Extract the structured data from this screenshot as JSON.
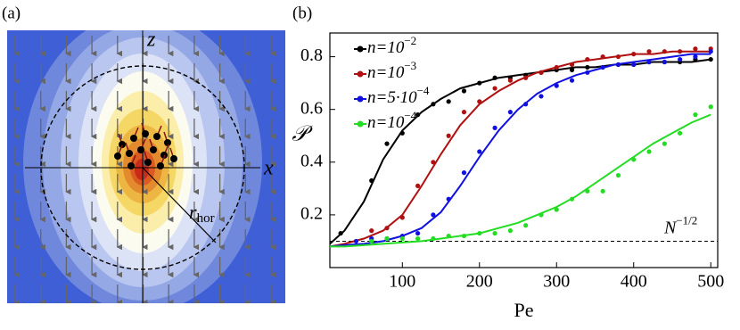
{
  "panel_a": {
    "label": "(a)",
    "z_label": "z",
    "x_label": "x",
    "r_label": "r",
    "r_subscript": "hor"
  },
  "chart_data": {
    "type": "line",
    "panel_label": "(b)",
    "x_label": "Pe",
    "y_label": "𝒫",
    "xlim": [
      6,
      509
    ],
    "ylim": [
      0,
      0.89
    ],
    "xticks": [
      100,
      200,
      300,
      400,
      500
    ],
    "yticks": [
      0.2,
      0.4,
      0.6,
      0.8
    ],
    "legend": "upper left",
    "reference_line": {
      "value": 0.1,
      "label": "N",
      "label_superscript": "−1/2"
    },
    "series": [
      {
        "name": "n=10",
        "name_superscript": "−2",
        "color": "#000000",
        "x": [
          20,
          60,
          80,
          100,
          120,
          140,
          160,
          180,
          200,
          220,
          240,
          260,
          280,
          300,
          320,
          340,
          360,
          380,
          400,
          420,
          440,
          460,
          480,
          500
        ],
        "values": [
          0.13,
          0.33,
          0.47,
          0.51,
          0.58,
          0.62,
          0.63,
          0.67,
          0.7,
          0.72,
          0.72,
          0.73,
          0.74,
          0.75,
          0.75,
          0.76,
          0.76,
          0.77,
          0.77,
          0.78,
          0.78,
          0.78,
          0.79,
          0.79
        ],
        "fit_x": [
          6,
          25,
          50,
          75,
          100,
          125,
          150,
          175,
          200,
          225,
          250,
          275,
          300,
          325,
          350,
          375,
          400,
          425,
          450,
          475,
          500
        ],
        "fit_values": [
          0.09,
          0.14,
          0.25,
          0.41,
          0.52,
          0.59,
          0.64,
          0.68,
          0.7,
          0.72,
          0.73,
          0.74,
          0.75,
          0.76,
          0.76,
          0.77,
          0.77,
          0.78,
          0.78,
          0.78,
          0.79
        ]
      },
      {
        "name": "n=10",
        "name_superscript": "−3",
        "color": "#b01010",
        "x": [
          60,
          80,
          100,
          120,
          140,
          160,
          180,
          200,
          220,
          240,
          260,
          280,
          300,
          320,
          340,
          360,
          380,
          400,
          420,
          440,
          460,
          480,
          500
        ],
        "values": [
          0.14,
          0.15,
          0.19,
          0.31,
          0.4,
          0.5,
          0.59,
          0.63,
          0.68,
          0.71,
          0.72,
          0.74,
          0.76,
          0.77,
          0.79,
          0.8,
          0.8,
          0.81,
          0.82,
          0.82,
          0.82,
          0.83,
          0.83
        ],
        "fit_x": [
          6,
          25,
          50,
          75,
          100,
          125,
          150,
          175,
          200,
          225,
          250,
          275,
          300,
          325,
          350,
          375,
          400,
          425,
          450,
          475,
          500
        ],
        "fit_values": [
          0.08,
          0.09,
          0.11,
          0.14,
          0.2,
          0.31,
          0.43,
          0.54,
          0.62,
          0.67,
          0.71,
          0.74,
          0.76,
          0.78,
          0.79,
          0.8,
          0.81,
          0.81,
          0.82,
          0.82,
          0.82
        ]
      },
      {
        "name": "n=5·10",
        "name_superscript": "−4",
        "color": "#1010e0",
        "x": [
          40,
          60,
          80,
          100,
          120,
          140,
          160,
          180,
          200,
          220,
          240,
          260,
          280,
          300,
          320,
          340,
          360,
          380,
          400,
          420,
          440,
          460,
          480,
          500
        ],
        "values": [
          0.1,
          0.11,
          0.11,
          0.12,
          0.13,
          0.2,
          0.26,
          0.36,
          0.44,
          0.53,
          0.59,
          0.62,
          0.65,
          0.69,
          0.71,
          0.74,
          0.76,
          0.77,
          0.77,
          0.78,
          0.78,
          0.79,
          0.8,
          0.82
        ],
        "fit_x": [
          6,
          25,
          50,
          75,
          100,
          125,
          150,
          175,
          200,
          225,
          250,
          275,
          300,
          325,
          350,
          375,
          400,
          425,
          450,
          475,
          500
        ],
        "fit_values": [
          0.08,
          0.085,
          0.09,
          0.1,
          0.12,
          0.15,
          0.21,
          0.31,
          0.42,
          0.52,
          0.6,
          0.66,
          0.7,
          0.73,
          0.75,
          0.77,
          0.78,
          0.79,
          0.8,
          0.81,
          0.81
        ]
      },
      {
        "name": "n=10",
        "name_superscript": "−4",
        "color": "#22dd22",
        "x": [
          60,
          80,
          100,
          120,
          140,
          160,
          180,
          200,
          220,
          240,
          260,
          280,
          300,
          320,
          340,
          360,
          380,
          400,
          420,
          440,
          460,
          480,
          500
        ],
        "values": [
          0.1,
          0.11,
          0.11,
          0.11,
          0.11,
          0.12,
          0.12,
          0.13,
          0.13,
          0.14,
          0.16,
          0.2,
          0.22,
          0.26,
          0.29,
          0.29,
          0.35,
          0.41,
          0.44,
          0.47,
          0.51,
          0.58,
          0.61
        ],
        "fit_x": [
          6,
          25,
          50,
          75,
          100,
          125,
          150,
          175,
          200,
          225,
          250,
          275,
          300,
          325,
          350,
          375,
          400,
          425,
          450,
          475,
          500
        ],
        "fit_values": [
          0.08,
          0.08,
          0.085,
          0.09,
          0.095,
          0.1,
          0.11,
          0.12,
          0.13,
          0.15,
          0.17,
          0.2,
          0.23,
          0.27,
          0.32,
          0.37,
          0.42,
          0.47,
          0.51,
          0.55,
          0.58
        ]
      }
    ]
  }
}
